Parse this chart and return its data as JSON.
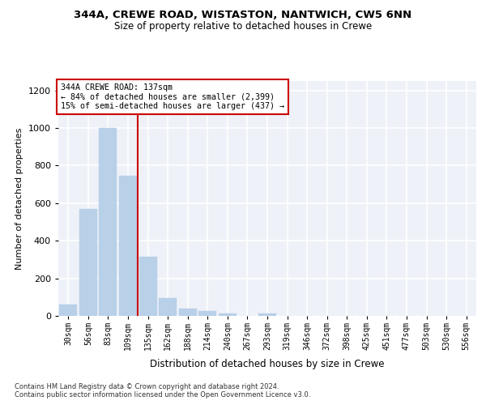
{
  "title1": "344A, CREWE ROAD, WISTASTON, NANTWICH, CW5 6NN",
  "title2": "Size of property relative to detached houses in Crewe",
  "xlabel": "Distribution of detached houses by size in Crewe",
  "ylabel": "Number of detached properties",
  "bar_color": "#b8d0e8",
  "bar_edge_color": "#b8d0e8",
  "categories": [
    "30sqm",
    "56sqm",
    "83sqm",
    "109sqm",
    "135sqm",
    "162sqm",
    "188sqm",
    "214sqm",
    "240sqm",
    "267sqm",
    "293sqm",
    "319sqm",
    "346sqm",
    "372sqm",
    "398sqm",
    "425sqm",
    "451sqm",
    "477sqm",
    "503sqm",
    "530sqm",
    "556sqm"
  ],
  "values": [
    60,
    570,
    1000,
    745,
    315,
    95,
    38,
    25,
    12,
    0,
    12,
    0,
    0,
    0,
    0,
    0,
    0,
    0,
    0,
    0,
    0
  ],
  "ylim": [
    0,
    1250
  ],
  "yticks": [
    0,
    200,
    400,
    600,
    800,
    1000,
    1200
  ],
  "vline_x_index": 3.5,
  "annotation_color": "#cc0000",
  "property_label": "344A CREWE ROAD: 137sqm",
  "annotation_line1": "← 84% of detached houses are smaller (2,399)",
  "annotation_line2": "15% of semi-detached houses are larger (437) →",
  "background_color": "#eef2f8",
  "grid_color": "#ffffff",
  "footer1": "Contains HM Land Registry data © Crown copyright and database right 2024.",
  "footer2": "Contains public sector information licensed under the Open Government Licence v3.0."
}
